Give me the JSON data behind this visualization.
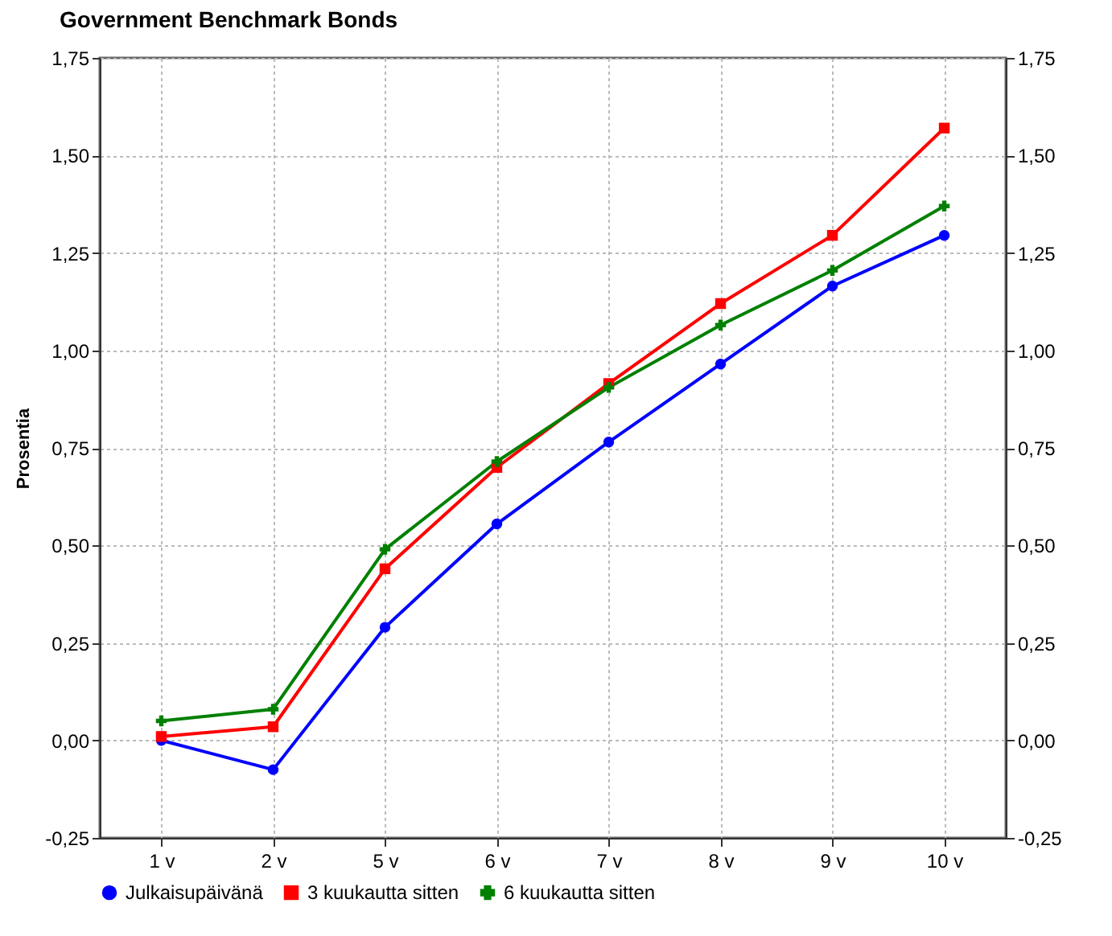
{
  "chart_data": {
    "type": "line",
    "title": "Government Benchmark Bonds",
    "ylabel": "Prosentia",
    "categories": [
      "1 v",
      "2 v",
      "5 v",
      "6 v",
      "7 v",
      "8 v",
      "9 v",
      "10 v"
    ],
    "series": [
      {
        "name": "Julkaisupäivänä",
        "color": "#0000ff",
        "marker": "circle",
        "values": [
          0.0,
          -0.075,
          0.29,
          0.555,
          0.765,
          0.965,
          1.165,
          1.295
        ]
      },
      {
        "name": "3 kuukautta sitten",
        "color": "#ff0000",
        "marker": "square",
        "values": [
          0.01,
          0.035,
          0.44,
          0.7,
          0.915,
          1.12,
          1.295,
          1.57
        ]
      },
      {
        "name": "6 kuukautta sitten",
        "color": "#008000",
        "marker": "cross",
        "values": [
          0.05,
          0.08,
          0.49,
          0.715,
          0.905,
          1.065,
          1.205,
          1.37
        ]
      }
    ],
    "ylim": [
      -0.25,
      1.75
    ],
    "yticks": [
      {
        "value": -0.25,
        "label": "-0,25"
      },
      {
        "value": 0,
        "label": "0,00"
      },
      {
        "value": 0.25,
        "label": "0,25"
      },
      {
        "value": 0.5,
        "label": "0,50"
      },
      {
        "value": 0.75,
        "label": "0,75"
      },
      {
        "value": 1,
        "label": "1,00"
      },
      {
        "value": 1.25,
        "label": "1,25"
      },
      {
        "value": 1.5,
        "label": "1,50"
      },
      {
        "value": 1.75,
        "label": "1,75"
      }
    ],
    "y2lim": [
      -0.25,
      1.75
    ],
    "y2ticks": [
      {
        "value": -0.25,
        "label": "-0,25"
      },
      {
        "value": 0,
        "label": "0,00"
      },
      {
        "value": 0.25,
        "label": "0,25"
      },
      {
        "value": 0.5,
        "label": "0,50"
      },
      {
        "value": 0.75,
        "label": "0,75"
      },
      {
        "value": 1,
        "label": "1,00"
      },
      {
        "value": 1.25,
        "label": "1,25"
      },
      {
        "value": 1.5,
        "label": "1,50"
      },
      {
        "value": 1.75,
        "label": "1,75"
      }
    ],
    "grid": true,
    "legend": "bottom",
    "line_style": "solid"
  }
}
